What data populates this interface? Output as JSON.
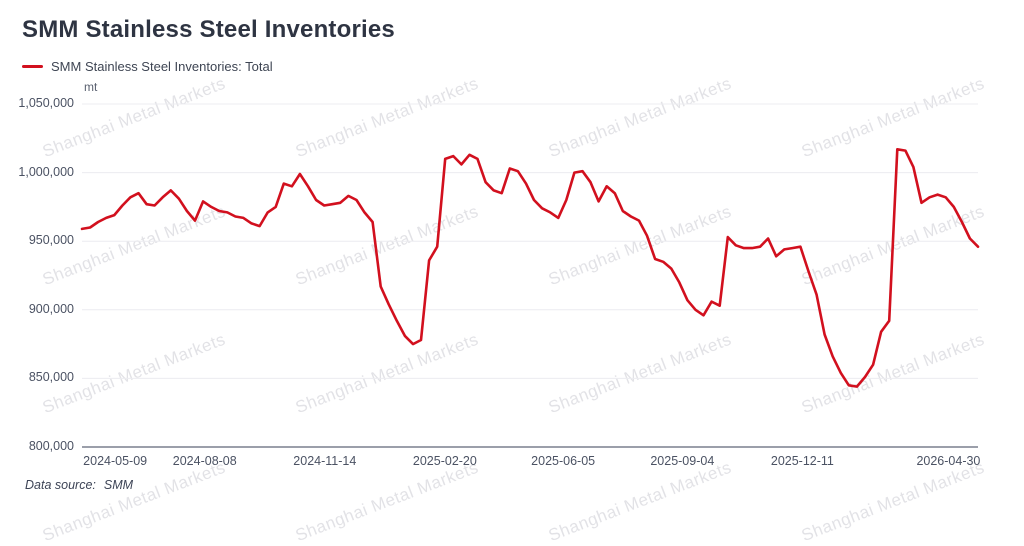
{
  "header": {
    "title": "SMM Stainless Steel Inventories"
  },
  "legend": {
    "label": "SMM Stainless Steel Inventories: Total",
    "marker_color": "#d2101e"
  },
  "footer": {
    "source_label": "Data source:",
    "source_value": "SMM"
  },
  "watermark": {
    "text": "Shanghai Metal Markets"
  },
  "chart_data": {
    "type": "line",
    "title": "SMM Stainless Steel Inventories",
    "unit": "mt",
    "grid": true,
    "legend_position": "top-left",
    "line_color": "#d2101e",
    "grid_color": "#ececf0",
    "axis_line_color": "#9b9faa",
    "x_ticks": [
      {
        "label": "2024-05-09",
        "pos": 0.037
      },
      {
        "label": "2024-08-08",
        "pos": 0.137
      },
      {
        "label": "2024-11-14",
        "pos": 0.271
      },
      {
        "label": "2025-02-20",
        "pos": 0.405
      },
      {
        "label": "2025-06-05",
        "pos": 0.537
      },
      {
        "label": "2025-09-04",
        "pos": 0.67
      },
      {
        "label": "2025-12-11",
        "pos": 0.804
      },
      {
        "label": "2026-04-30",
        "pos": 0.967
      }
    ],
    "y_axis": {
      "min": 800000,
      "max": 1050000,
      "step": 50000,
      "tick_labels": [
        "1,050,000",
        "1,000,000",
        "950,000",
        "900,000",
        "850,000",
        "800,000"
      ]
    },
    "series": [
      {
        "name": "SMM Stainless Steel Inventories: Total",
        "cadence": "weekly",
        "values": [
          959000,
          960000,
          964000,
          967000,
          969000,
          976000,
          982000,
          985000,
          977000,
          976000,
          982000,
          987000,
          981000,
          972000,
          965000,
          979000,
          975000,
          972000,
          971000,
          968000,
          967000,
          963000,
          961000,
          971000,
          975000,
          992000,
          990000,
          999000,
          990000,
          980000,
          976000,
          977000,
          978000,
          983000,
          980000,
          971000,
          964000,
          917000,
          904000,
          892000,
          881000,
          875000,
          878000,
          936000,
          946000,
          1010000,
          1012000,
          1006000,
          1013000,
          1010000,
          993000,
          987000,
          985000,
          1003000,
          1001000,
          992000,
          980000,
          974000,
          971000,
          967000,
          980000,
          1000000,
          1001000,
          993000,
          979000,
          990000,
          985000,
          972000,
          968000,
          965000,
          954000,
          937000,
          935000,
          930000,
          920000,
          907000,
          900000,
          896000,
          906000,
          903000,
          953000,
          947000,
          945000,
          945000,
          946000,
          952000,
          939000,
          944000,
          945000,
          946000,
          928000,
          911000,
          882000,
          866000,
          854000,
          845000,
          844000,
          851000,
          860000,
          884000,
          892000,
          1017000,
          1016000,
          1004000,
          978000,
          982000,
          984000,
          982000,
          975000,
          964000,
          952000,
          946000
        ]
      }
    ]
  }
}
